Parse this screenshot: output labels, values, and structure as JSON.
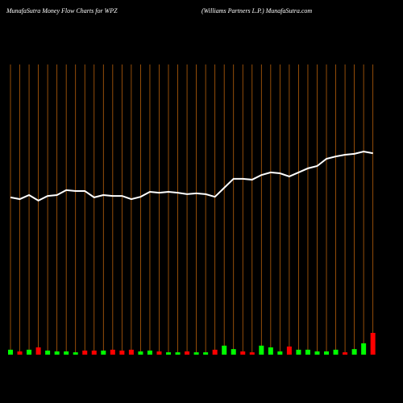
{
  "chart_data": {
    "type": "combo",
    "title": "MunafaSutra  Money Flow  Charts for WPZ",
    "subtitle": "(Williams Partners L.P.) MunafaSutra.com",
    "categories": [
      null,
      null,
      null,
      null,
      null,
      null,
      null,
      null,
      null,
      null,
      null,
      null,
      null,
      null,
      null,
      null,
      null,
      null,
      null,
      null,
      null,
      null,
      null,
      null,
      null,
      null,
      null,
      null,
      null,
      null,
      null,
      null,
      null,
      null,
      null,
      null,
      null,
      null,
      null,
      null
    ],
    "ylim": [
      0,
      100
    ],
    "grid": true,
    "grid_color": "#b8600b",
    "series": [
      {
        "kind": "line",
        "color": "#ffffff",
        "values": [
          54.2,
          53.6,
          55,
          53.1,
          54.7,
          55,
          56.7,
          56.4,
          56.4,
          54.2,
          55,
          54.7,
          54.7,
          53.6,
          54.4,
          56.1,
          55.8,
          56.1,
          55.8,
          55.3,
          55.6,
          55.3,
          54.4,
          57.5,
          60.6,
          60.6,
          60.3,
          61.9,
          62.8,
          62.5,
          61.4,
          62.8,
          64.2,
          65,
          67.5,
          68.3,
          68.9,
          69.2,
          70,
          69.4
        ]
      },
      {
        "kind": "bar",
        "values": [
          1.7,
          1.1,
          1.7,
          2.5,
          1.4,
          1.1,
          1.1,
          0.8,
          1.4,
          1.4,
          1.4,
          1.7,
          1.4,
          1.7,
          1.1,
          1.4,
          1.1,
          0.8,
          0.8,
          1.1,
          0.8,
          0.8,
          1.7,
          3.1,
          1.9,
          1.1,
          0.8,
          3.1,
          2.5,
          1.1,
          2.8,
          1.7,
          1.7,
          1.1,
          1.1,
          1.7,
          0.8,
          1.9,
          3.9,
          7.5
        ],
        "colors": [
          "#00ff00",
          "#ff0000",
          "#00ff00",
          "#ff0000",
          "#00ff00",
          "#00ff00",
          "#00ff00",
          "#00ff00",
          "#ff0000",
          "#ff0000",
          "#00ff00",
          "#ff0000",
          "#ff0000",
          "#ff0000",
          "#00ff00",
          "#00ff00",
          "#ff0000",
          "#00ff00",
          "#00ff00",
          "#ff0000",
          "#00ff00",
          "#00ff00",
          "#ff0000",
          "#00ff00",
          "#00ff00",
          "#ff0000",
          "#ff0000",
          "#00ff00",
          "#00ff00",
          "#00ff00",
          "#ff0000",
          "#00ff00",
          "#00ff00",
          "#00ff00",
          "#00ff00",
          "#00ff00",
          "#ff0000",
          "#00ff00",
          "#00ff00",
          "#ff0000"
        ]
      }
    ]
  }
}
